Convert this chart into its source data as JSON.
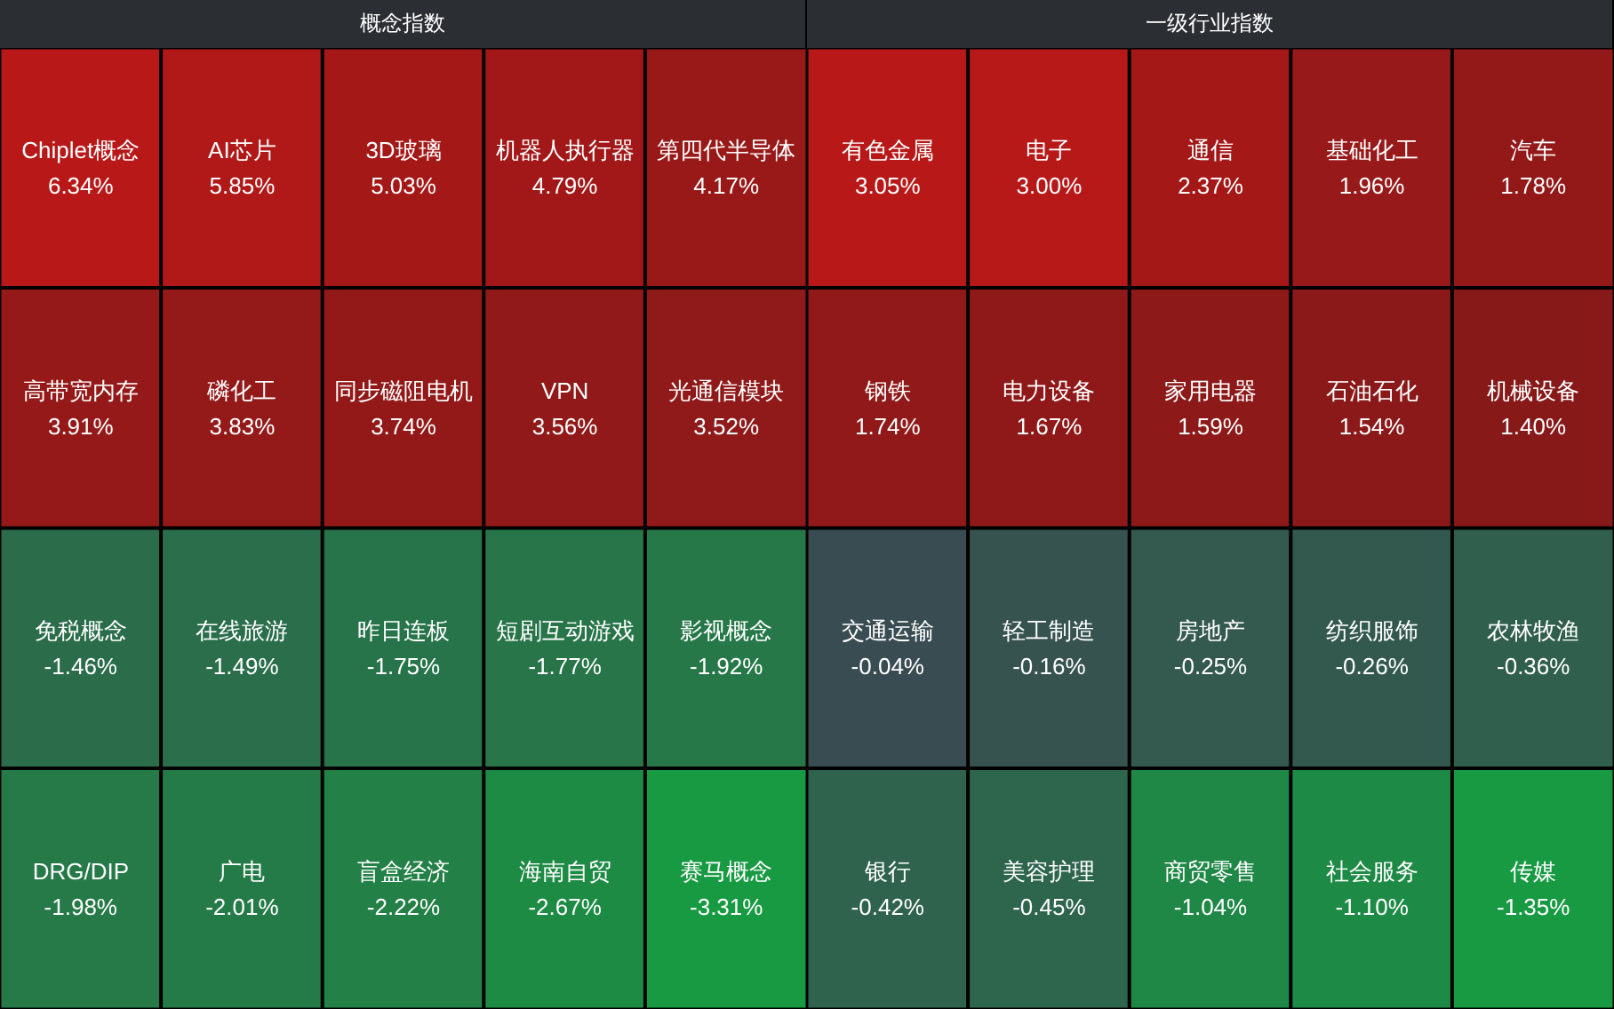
{
  "chart_data": [
    {
      "type": "other",
      "title": "概念指数",
      "categories": [
        "Chiplet概念",
        "AI芯片",
        "3D玻璃",
        "机器人执行器",
        "第四代半导体",
        "高带宽内存",
        "磷化工",
        "同步磁阻电机",
        "VPN",
        "光通信模块",
        "免税概念",
        "在线旅游",
        "昨日连板",
        "短剧互动游戏",
        "影视概念",
        "DRG/DIP",
        "广电",
        "盲盒经济",
        "海南自贸",
        "赛马概念"
      ],
      "values": [
        6.34,
        5.85,
        5.03,
        4.79,
        4.17,
        3.91,
        3.83,
        3.74,
        3.56,
        3.52,
        -1.46,
        -1.49,
        -1.75,
        -1.77,
        -1.92,
        -1.98,
        -2.01,
        -2.22,
        -2.67,
        -3.31
      ],
      "value_labels": [
        "6.34%",
        "5.85%",
        "5.03%",
        "4.79%",
        "4.17%",
        "3.91%",
        "3.83%",
        "3.74%",
        "3.56%",
        "3.52%",
        "-1.46%",
        "-1.49%",
        "-1.75%",
        "-1.77%",
        "-1.92%",
        "-1.98%",
        "-2.01%",
        "-2.22%",
        "-2.67%",
        "-3.31%"
      ]
    },
    {
      "type": "other",
      "title": "一级行业指数",
      "categories": [
        "有色金属",
        "电子",
        "通信",
        "基础化工",
        "汽车",
        "钢铁",
        "电力设备",
        "家用电器",
        "石油石化",
        "机械设备",
        "交通运输",
        "轻工制造",
        "房地产",
        "纺织服饰",
        "农林牧渔",
        "银行",
        "美容护理",
        "商贸零售",
        "社会服务",
        "传媒"
      ],
      "values": [
        3.05,
        3.0,
        2.37,
        1.96,
        1.78,
        1.74,
        1.67,
        1.59,
        1.54,
        1.4,
        -0.04,
        -0.16,
        -0.25,
        -0.26,
        -0.36,
        -0.42,
        -0.45,
        -1.04,
        -1.1,
        -1.35
      ],
      "value_labels": [
        "3.05%",
        "3.00%",
        "2.37%",
        "1.96%",
        "1.78%",
        "1.74%",
        "1.67%",
        "1.59%",
        "1.54%",
        "1.40%",
        "-0.04%",
        "-0.16%",
        "-0.25%",
        "-0.26%",
        "-0.36%",
        "-0.42%",
        "-0.45%",
        "-1.04%",
        "-1.10%",
        "-1.35%"
      ]
    }
  ]
}
